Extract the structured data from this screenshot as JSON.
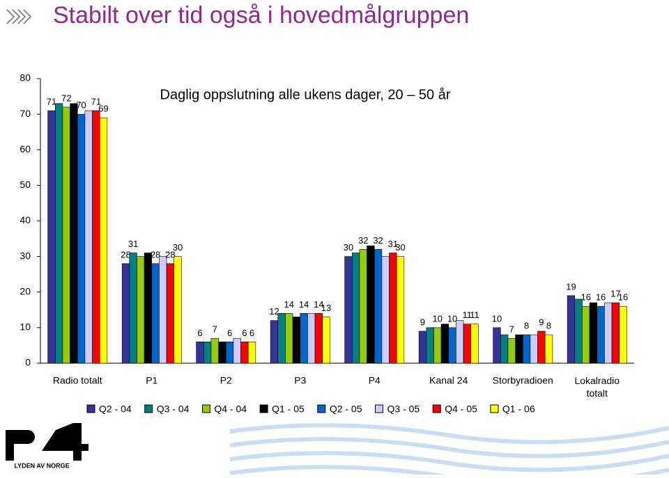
{
  "page_title": "Stabilt over tid også i hovedmålgruppen",
  "logo": {
    "text": "LYDEN AV NORGE"
  },
  "chart_data": {
    "type": "bar",
    "title": "Daglig oppslutning alle ukens dager, 20 – 50 år",
    "categories": [
      "Radio totalt",
      "P1",
      "P2",
      "P3",
      "P4",
      "Kanal 24",
      "Storbyradioen",
      "Lokalradio totalt"
    ],
    "ylim": [
      0,
      80
    ],
    "yticks": [
      0,
      10,
      20,
      30,
      40,
      50,
      60,
      70,
      80
    ],
    "series": [
      {
        "name": "Q2 - 04",
        "color": "#333399",
        "values": [
          71,
          28,
          6,
          12,
          30,
          9,
          10,
          19
        ],
        "value_labels": [
          "71",
          "28",
          "6",
          "12",
          "30",
          "9",
          "10",
          "19"
        ]
      },
      {
        "name": "Q3 - 04",
        "color": "#008080",
        "values": [
          73,
          31,
          6,
          14,
          31,
          10,
          8,
          18
        ],
        "value_labels": [
          null,
          "31",
          null,
          null,
          null,
          null,
          null,
          null
        ]
      },
      {
        "name": "Q4 - 04",
        "color": "#99cc00",
        "values": [
          72,
          30,
          7,
          14,
          32,
          10,
          7,
          16
        ],
        "value_labels": [
          "72",
          null,
          "7",
          "14",
          "32",
          "10",
          "7",
          "16"
        ]
      },
      {
        "name": "Q1 - 05",
        "color": "#000000",
        "values": [
          73,
          31,
          6,
          13,
          33,
          11,
          8,
          17
        ],
        "value_labels": [
          null,
          null,
          null,
          null,
          null,
          null,
          null,
          null
        ]
      },
      {
        "name": "Q2 - 05",
        "color": "#0066cc",
        "values": [
          70,
          28,
          6,
          14,
          32,
          10,
          8,
          16
        ],
        "value_labels": [
          "70",
          "28",
          "6",
          "14",
          "32",
          "10",
          "8",
          "16"
        ]
      },
      {
        "name": "Q3 - 05",
        "color": "#ccccff",
        "values": [
          71,
          30,
          7,
          14,
          30,
          12,
          8,
          17
        ],
        "value_labels": [
          null,
          null,
          null,
          null,
          null,
          null,
          null,
          null
        ]
      },
      {
        "name": "Q4 - 05",
        "color": "#ff0000",
        "values": [
          71,
          28,
          6,
          14,
          31,
          11,
          9,
          17
        ],
        "value_labels": [
          "71",
          "28",
          "6",
          "14",
          "31",
          "11",
          "9",
          "17"
        ]
      },
      {
        "name": "Q1 - 06",
        "color": "#ffff00",
        "values": [
          69,
          30,
          6,
          13,
          30,
          11,
          8,
          16
        ],
        "value_labels": [
          "69",
          "30",
          "6",
          "13",
          "30",
          "11",
          "8",
          "16"
        ]
      }
    ]
  }
}
